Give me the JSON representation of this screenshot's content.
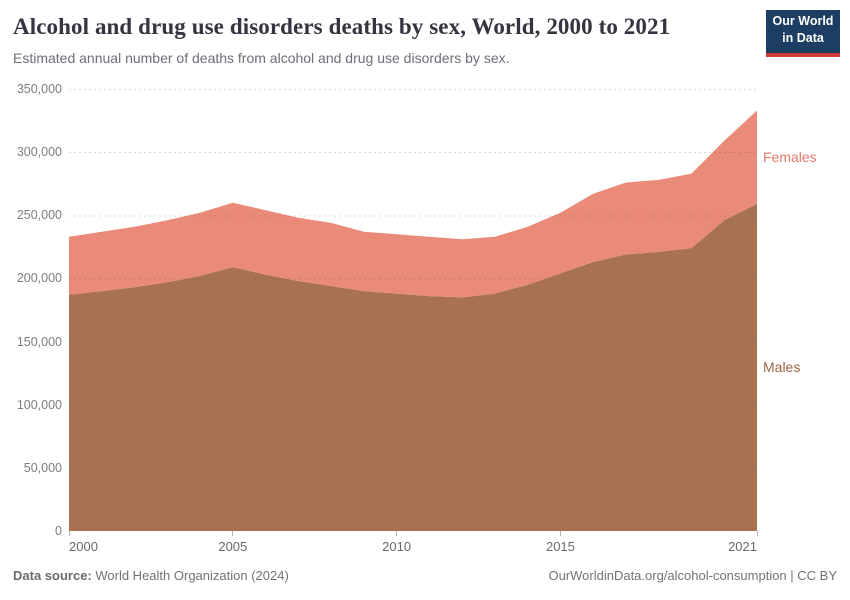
{
  "header": {
    "title": "Alcohol and drug use disorders deaths by sex, World, 2000 to 2021",
    "subtitle": "Estimated annual number of deaths from alcohol and drug use disorders by sex.",
    "logo": {
      "line1": "Our World",
      "line2": "in Data",
      "bg_color": "#1d3d63",
      "accent_color": "#cd3d34"
    }
  },
  "chart_data": {
    "type": "area",
    "stacked": true,
    "title": "Alcohol and drug use disorders deaths by sex, World, 2000 to 2021",
    "xlabel": "",
    "ylabel": "Estimated annual number of deaths",
    "grid": "horizontal-dashed",
    "legend_position": "right-of-areas",
    "x": [
      2000,
      2001,
      2002,
      2003,
      2004,
      2005,
      2006,
      2007,
      2008,
      2009,
      2010,
      2011,
      2012,
      2013,
      2014,
      2015,
      2016,
      2017,
      2018,
      2019,
      2020,
      2021
    ],
    "series": [
      {
        "name": "Males",
        "color": "#a87251",
        "label_color": "#9d6340",
        "values": [
          187000,
          190000,
          193000,
          197000,
          202000,
          209000,
          203000,
          198000,
          194000,
          190000,
          188000,
          186000,
          185000,
          188000,
          195000,
          204000,
          213000,
          219000,
          221000,
          224000,
          246000,
          259000
        ]
      },
      {
        "name": "Females",
        "color": "#ea8a78",
        "label_color": "#e4786b",
        "values": [
          46000,
          47000,
          48000,
          49000,
          50000,
          51000,
          51000,
          50000,
          50000,
          47000,
          47000,
          47000,
          46000,
          45000,
          46000,
          48000,
          54000,
          57000,
          57000,
          59000,
          63000,
          74000
        ]
      }
    ],
    "stacked_totals": [
      233000,
      237000,
      241000,
      246000,
      252000,
      260000,
      254000,
      248000,
      244000,
      237000,
      235000,
      233000,
      231000,
      233000,
      241000,
      252000,
      267000,
      276000,
      278000,
      283000,
      309000,
      333000
    ],
    "ylim": [
      0,
      350000
    ],
    "yticks": [
      0,
      50000,
      100000,
      150000,
      200000,
      250000,
      300000,
      350000
    ],
    "ytick_labels": [
      "0",
      "50,000",
      "100,000",
      "150,000",
      "200,000",
      "250,000",
      "300,000",
      "350,000"
    ],
    "xticks": [
      2000,
      2005,
      2010,
      2015,
      2021
    ],
    "xtick_labels": [
      "2000",
      "2005",
      "2010",
      "2015",
      "2021"
    ]
  },
  "footer": {
    "source_label": "Data source:",
    "source_value": " World Health Organization (2024)",
    "link": "OurWorldinData.org/alcohol-consumption | CC BY"
  }
}
